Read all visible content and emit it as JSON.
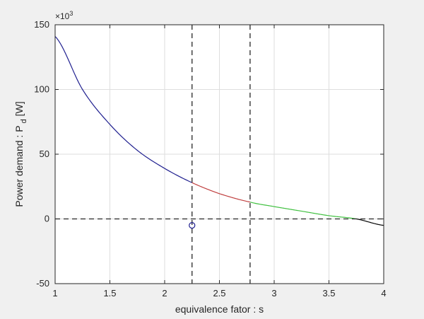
{
  "chart_data": {
    "type": "line",
    "title": "",
    "xlabel": "equivalence fator : s",
    "ylabel": {
      "main": "Power demand : P",
      "subscript": "d",
      "unit": "[W]"
    },
    "y_exponent": {
      "base": "×10",
      "power": "3"
    },
    "xlim": [
      1,
      4
    ],
    "ylim": [
      -50,
      150
    ],
    "x_ticks": [
      1,
      1.5,
      2,
      2.5,
      3,
      3.5,
      4
    ],
    "x_tick_labels": [
      "1",
      "1.5",
      "2",
      "2.5",
      "3",
      "3.5",
      "4"
    ],
    "y_ticks": [
      -50,
      0,
      50,
      100,
      150
    ],
    "y_tick_labels": [
      "-50",
      "0",
      "50",
      "100",
      "150"
    ],
    "grid": true,
    "curve": {
      "description_points_y_units": "thousands of W",
      "x": [
        1,
        1.25,
        1.5,
        1.75,
        2,
        2.25,
        2.5,
        2.78,
        3,
        3.25,
        3.5,
        3.75,
        4
      ],
      "y": [
        141,
        100,
        73,
        53,
        39,
        28,
        19.5,
        13,
        9.5,
        6,
        2.5,
        0,
        -5
      ]
    },
    "series": [
      {
        "x_start": 1,
        "x_end": 2.25,
        "color": "#1f1f8f"
      },
      {
        "x_start": 2.25,
        "x_end": 2.78,
        "color": "#c04040"
      },
      {
        "x_start": 2.78,
        "x_end": 3.75,
        "color": "#40c040"
      },
      {
        "x_start": 3.75,
        "x_end": 4,
        "color": "#000000"
      }
    ],
    "reference_lines": {
      "vertical_x": [
        2.25,
        2.78
      ],
      "horizontal_y": [
        0
      ]
    },
    "marker": {
      "x": 2.25,
      "y": -5,
      "shape": "circle",
      "color": "#1f1f8f"
    }
  }
}
